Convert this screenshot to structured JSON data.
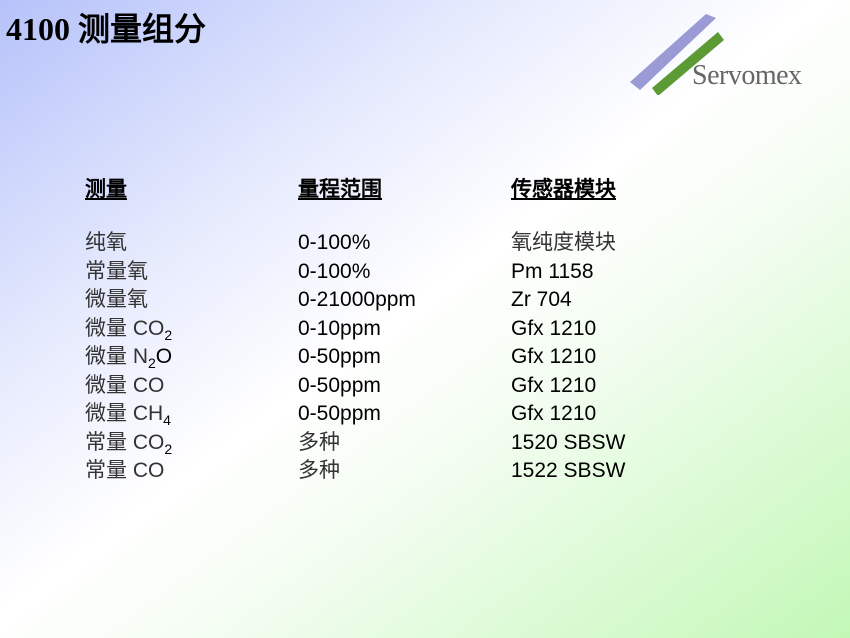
{
  "title": "4100 测量组分",
  "logo": {
    "text": "Servomex",
    "colors": {
      "stripe_blue": "#9a9ad4",
      "stripe_green": "#5c9a34"
    }
  },
  "headers": {
    "measurement": "测量",
    "range": "量程范围",
    "sensor": "传感器模块"
  },
  "rows": [
    {
      "measurement": "纯氧",
      "sub": "",
      "after": "",
      "range": "0-100%",
      "sensor": "氧纯度模块"
    },
    {
      "measurement": "常量氧",
      "sub": "",
      "after": "",
      "range": "0-100%",
      "sensor": "Pm 1158"
    },
    {
      "measurement": "微量氧",
      "sub": "",
      "after": "",
      "range": "0-21000ppm",
      "sensor": "Zr 704"
    },
    {
      "measurement": "微量 CO",
      "sub": "2",
      "after": "",
      "range": "0-10ppm",
      "sensor": "Gfx 1210"
    },
    {
      "measurement": "微量 N",
      "sub": "2",
      "after": "O",
      "range": "0-50ppm",
      "sensor": "Gfx 1210"
    },
    {
      "measurement": "微量 CO",
      "sub": "",
      "after": "",
      "range": "0-50ppm",
      "sensor": "Gfx 1210"
    },
    {
      "measurement": "微量 CH",
      "sub": "4",
      "after": "",
      "range": "0-50ppm",
      "sensor": "Gfx 1210"
    },
    {
      "measurement": "常量 CO",
      "sub": "2",
      "after": "",
      "range": "多种",
      "sensor": "1520 SBSW"
    },
    {
      "measurement": "常量 CO",
      "sub": "",
      "after": "",
      "range": "多种",
      "sensor": "1522 SBSW"
    }
  ]
}
